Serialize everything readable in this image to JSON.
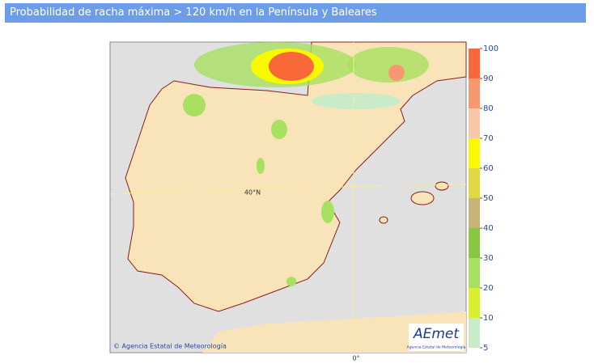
{
  "header": {
    "title": "Probabilidad de racha máxima > 120 km/h en la Península y Baleares"
  },
  "map": {
    "latitude_label": "40°N",
    "longitude_label": "0°",
    "credit": "© Agencia Estatal de Meteorología",
    "logo": {
      "name": "AEmet",
      "caption": "Agencia Estatal de Meteorología"
    }
  },
  "colorbar": {
    "ticks": [
      5,
      10,
      20,
      30,
      40,
      50,
      60,
      70,
      80,
      90,
      100
    ],
    "colors": [
      "#c8ecc8",
      "#d8f030",
      "#a8e060",
      "#88c840",
      "#c8b478",
      "#e0d840",
      "#f8f800",
      "#f8c8a8",
      "#f89870",
      "#f86838"
    ]
  }
}
